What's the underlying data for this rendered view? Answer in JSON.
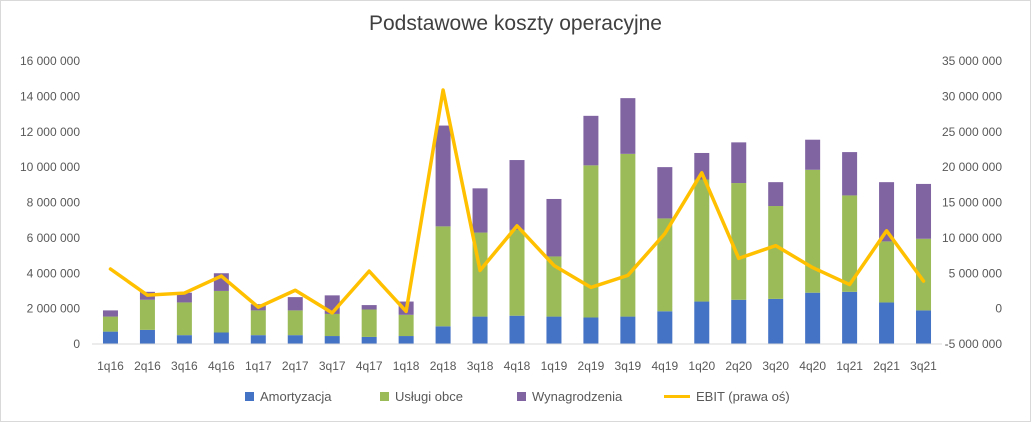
{
  "chart_data": {
    "type": "bar",
    "title": "Podstawowe koszty operacyjne",
    "categories": [
      "1q16",
      "2q16",
      "3q16",
      "4q16",
      "1q17",
      "2q17",
      "3q17",
      "4q17",
      "1q18",
      "2q18",
      "3q18",
      "4q18",
      "1q19",
      "2q19",
      "3q19",
      "4q19",
      "1q20",
      "2q20",
      "3q20",
      "4q20",
      "1q21",
      "2q21",
      "3q21"
    ],
    "stacked": true,
    "series": [
      {
        "name": "Amortyzacja",
        "axis": "left",
        "color": "#4472c4",
        "values": [
          700000,
          800000,
          500000,
          650000,
          500000,
          500000,
          450000,
          400000,
          450000,
          1000000,
          1550000,
          1600000,
          1550000,
          1500000,
          1550000,
          1850000,
          2400000,
          2500000,
          2550000,
          2900000,
          2950000,
          2350000,
          1900000
        ]
      },
      {
        "name": "Usługi obce",
        "axis": "left",
        "color": "#9bbb59",
        "values": [
          850000,
          1700000,
          1850000,
          2350000,
          1400000,
          1400000,
          1250000,
          1550000,
          1200000,
          5650000,
          4750000,
          4850000,
          3400000,
          8600000,
          9200000,
          5250000,
          6900000,
          6600000,
          5250000,
          6950000,
          5450000,
          3450000,
          4050000
        ]
      },
      {
        "name": "Wynagrodzenia",
        "axis": "left",
        "color": "#8064a2",
        "values": [
          350000,
          450000,
          550000,
          1000000,
          350000,
          750000,
          1050000,
          250000,
          750000,
          5700000,
          2500000,
          3950000,
          3250000,
          2800000,
          3150000,
          2900000,
          1500000,
          2300000,
          1350000,
          1700000,
          2450000,
          3350000,
          3100000
        ]
      },
      {
        "name": "EBIT (prawa oś)",
        "axis": "right",
        "type": "line",
        "color": "#ffc000",
        "values": [
          5600000,
          1900000,
          2200000,
          4600000,
          200000,
          2600000,
          -600000,
          5300000,
          -400000,
          30900000,
          5400000,
          11700000,
          6100000,
          3000000,
          4700000,
          10600000,
          19200000,
          7100000,
          8900000,
          5800000,
          3400000,
          11000000,
          3900000
        ]
      }
    ],
    "left_axis": {
      "min": 0,
      "max": 16000000,
      "ticks": [
        "0",
        "2 000 000",
        "4 000 000",
        "6 000 000",
        "8 000 000",
        "10 000 000",
        "12 000 000",
        "14 000 000",
        "16 000 000"
      ]
    },
    "right_axis": {
      "min": -5000000,
      "max": 35000000,
      "ticks": [
        "-5 000 000",
        "0",
        "5 000 000",
        "10 000 000",
        "15 000 000",
        "20 000 000",
        "25 000 000",
        "30 000 000",
        "35 000 000"
      ]
    },
    "grid": false,
    "legend_position": "bottom"
  }
}
